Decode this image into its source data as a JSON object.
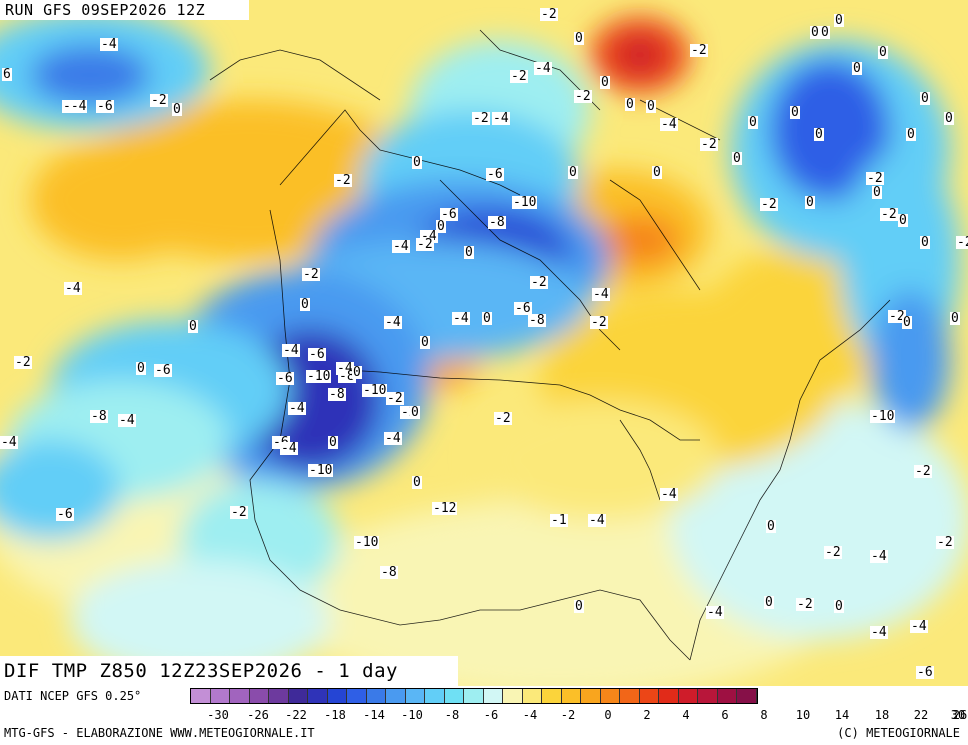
{
  "header": {
    "run_title": "RUN GFS 09SEP2026 12Z",
    "map_title": "DIF TMP Z850 12Z23SEP2026 - 1 day"
  },
  "legend": {
    "source": "DATI NCEP GFS 0.25°",
    "credit": "MTG-GFS - ELABORAZIONE WWW.METEOGIORNALE.IT",
    "copyright": "(C) METEOGIORNALE",
    "colors": [
      "#c38fd6",
      "#b279cd",
      "#a164be",
      "#8a4cab",
      "#6d3a9e",
      "#3f2a99",
      "#2f33b8",
      "#2545d4",
      "#2f5fe6",
      "#3a7ae8",
      "#4a9af0",
      "#5ab6f5",
      "#62cef7",
      "#6fe0f4",
      "#9eeef1",
      "#d2f7f5",
      "#f9f5b4",
      "#fbe97a",
      "#fbd43b",
      "#fbbf28",
      "#f9a51e",
      "#f6861a",
      "#f26618",
      "#ec4617",
      "#e12b19",
      "#cf1c2a",
      "#b8163a",
      "#9e1042",
      "#861048"
    ],
    "ticks": [
      "-30",
      "-26",
      "-22",
      "-18",
      "-14",
      "-10",
      "-8",
      "-6",
      "-4",
      "-2",
      "0",
      "2",
      "4",
      "6",
      "8",
      "10",
      "14",
      "18",
      "22",
      "26",
      "30"
    ]
  },
  "contour_labels": [
    "-4",
    "6",
    "--4",
    "-6",
    "-2",
    "0",
    "-2",
    "0",
    "-2",
    "-4",
    "-2",
    "0",
    "-4",
    "-2",
    "0",
    "-2",
    "0",
    "-2",
    "-4",
    "-2",
    "0",
    "-6",
    "-10",
    "-2",
    "-6",
    "-8",
    "-4",
    "-4",
    "-2",
    "0",
    "-2",
    "0",
    "-6",
    "-8",
    "-4",
    "-2",
    "0",
    "-2",
    "0",
    "-4",
    "-4",
    "-4",
    "-6",
    "-6",
    "-10",
    "-4",
    "-8",
    "0",
    "-2",
    "-2",
    "-4",
    "0",
    "-6",
    "-4",
    "-6",
    "-2",
    "-10",
    "-6",
    "-4",
    "0",
    "-4",
    "0",
    "-6",
    "-10",
    "-8",
    "-12",
    "-1",
    "-4",
    "-4",
    "0",
    "-2",
    "-4",
    "-2",
    "0",
    "-4",
    "0",
    "-2",
    "0",
    "-4",
    "-4",
    "-6",
    "-2",
    "-10",
    "0",
    "-2",
    "0",
    "0",
    "-2",
    "0",
    "-2",
    "0",
    "-2",
    "0",
    "0",
    "0",
    "0",
    "0",
    "0",
    "0",
    "0",
    "0",
    "0",
    "0",
    "0",
    "0",
    "0",
    "0",
    "0",
    "0",
    "-2",
    "-10",
    "-8",
    "-4",
    "-4",
    "0",
    "-2",
    "-8"
  ]
}
